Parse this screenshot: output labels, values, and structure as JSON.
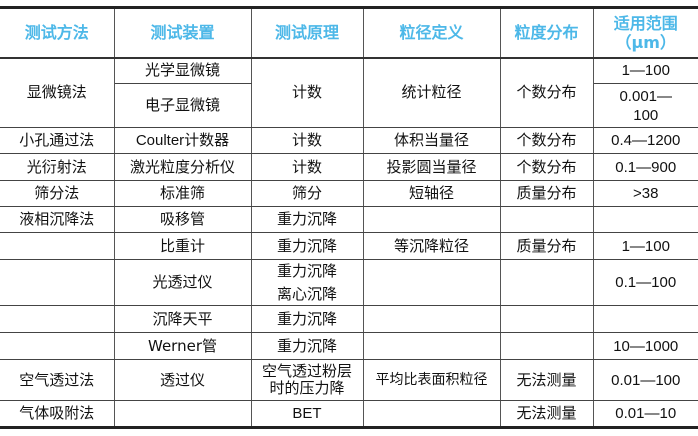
{
  "header_color": "#4db8e8",
  "headers": [
    "测试方法",
    "测试装置",
    "测试原理",
    "粒径定义",
    "粒度分布",
    "适用范围（μm）"
  ],
  "rows": {
    "r1": {
      "method": "显微镜法",
      "device_a": "光学显微镜",
      "principle": "计数",
      "definition": "统计粒径",
      "distribution": "个数分布",
      "range_a": "1—100",
      "device_b": "电子显微镜",
      "range_b": "0.001—100"
    },
    "r2": [
      "小孔通过法",
      "Coulter计数器",
      "计数",
      "体积当量径",
      "个数分布",
      "0.4—1200"
    ],
    "r3": [
      "光衍射法",
      "激光粒度分析仪",
      "计数",
      "投影圆当量径",
      "个数分布",
      "0.1—900"
    ],
    "r4": [
      "筛分法",
      "标准筛",
      "筛分",
      "短轴径",
      "质量分布",
      ">38"
    ],
    "r5": [
      "液相沉降法",
      "吸移管",
      "重力沉降",
      "",
      "",
      ""
    ],
    "r6": [
      "",
      "比重计",
      "重力沉降",
      "等沉降粒径",
      "质量分布",
      "1—100"
    ],
    "r7": {
      "method": "",
      "device": "光透过仪",
      "principle_a": "重力沉降",
      "principle_b": "离心沉降",
      "definition": "",
      "distribution": "",
      "range": "0.1—100"
    },
    "r8": [
      "",
      "沉降天平",
      "重力沉降",
      "",
      "",
      ""
    ],
    "r9": [
      "",
      "Werner管",
      "重力沉降",
      "",
      "",
      "10—1000"
    ],
    "r10": [
      "空气透过法",
      "透过仪",
      "空气透过粉层时的压力降",
      "平均比表面积粒径",
      "无法测量",
      "0.01—100"
    ],
    "r11": [
      "气体吸附法",
      "",
      "BET",
      "",
      "无法测量",
      "0.01—10"
    ]
  }
}
